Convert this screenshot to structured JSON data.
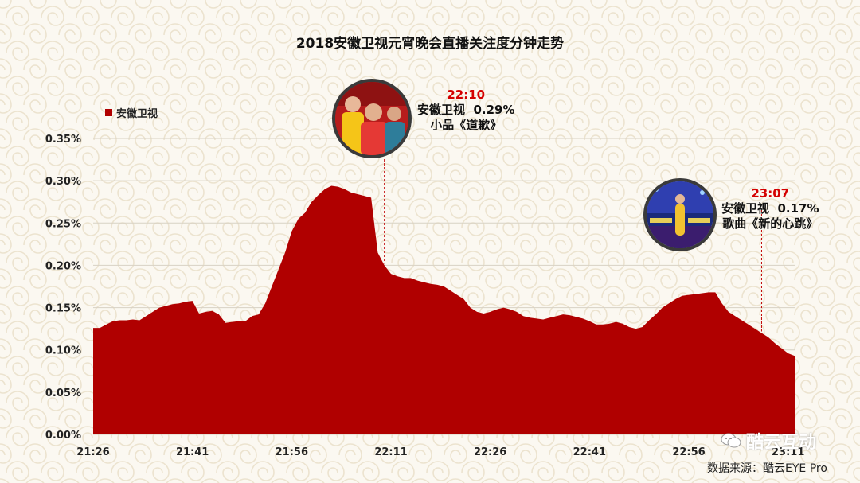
{
  "title": "2018安徽卫视元宵晚会直播关注度分钟走势",
  "legend": {
    "label": "安徽卫视",
    "color": "#b00000"
  },
  "annotations": [
    {
      "time": "22:10",
      "line1": "安徽卫视  0.29%",
      "line2": "小品《道歉》"
    },
    {
      "time": "23:07",
      "line1": "安徽卫视  0.17%",
      "line2": "歌曲《新的心跳》"
    }
  ],
  "footer": {
    "logo_text": "酷云互动",
    "source": "数据来源：酷云EYE Pro"
  },
  "chart_data": {
    "type": "area",
    "title": "2018安徽卫视元宵晚会直播关注度分钟走势",
    "xlabel": "",
    "ylabel": "",
    "ylim": [
      0,
      0.35
    ],
    "yticks": [
      "0.00%",
      "0.05%",
      "0.10%",
      "0.15%",
      "0.20%",
      "0.25%",
      "0.30%",
      "0.35%"
    ],
    "xticks": [
      "21:26",
      "21:41",
      "21:56",
      "22:11",
      "22:26",
      "22:41",
      "22:56",
      "23:11"
    ],
    "grid": true,
    "legend_position": "top-left",
    "series": [
      {
        "name": "安徽卫视",
        "color": "#b00000",
        "x_start": "21:26",
        "x_end": "23:17",
        "values": [
          0.126,
          0.126,
          0.13,
          0.134,
          0.135,
          0.135,
          0.136,
          0.135,
          0.14,
          0.145,
          0.15,
          0.152,
          0.154,
          0.155,
          0.157,
          0.158,
          0.143,
          0.145,
          0.146,
          0.142,
          0.132,
          0.133,
          0.134,
          0.134,
          0.14,
          0.142,
          0.155,
          0.175,
          0.195,
          0.215,
          0.24,
          0.255,
          0.262,
          0.275,
          0.283,
          0.29,
          0.294,
          0.293,
          0.29,
          0.286,
          0.284,
          0.282,
          0.28,
          0.215,
          0.2,
          0.19,
          0.187,
          0.185,
          0.185,
          0.182,
          0.18,
          0.178,
          0.177,
          0.175,
          0.17,
          0.165,
          0.16,
          0.15,
          0.145,
          0.143,
          0.145,
          0.148,
          0.15,
          0.148,
          0.145,
          0.14,
          0.138,
          0.137,
          0.136,
          0.138,
          0.14,
          0.142,
          0.141,
          0.139,
          0.137,
          0.134,
          0.13,
          0.13,
          0.131,
          0.133,
          0.131,
          0.127,
          0.125,
          0.127,
          0.135,
          0.142,
          0.15,
          0.155,
          0.16,
          0.164,
          0.165,
          0.166,
          0.167,
          0.168,
          0.168,
          0.155,
          0.145,
          0.14,
          0.135,
          0.13,
          0.125,
          0.12,
          0.115,
          0.108,
          0.102,
          0.096,
          0.093
        ]
      }
    ]
  }
}
